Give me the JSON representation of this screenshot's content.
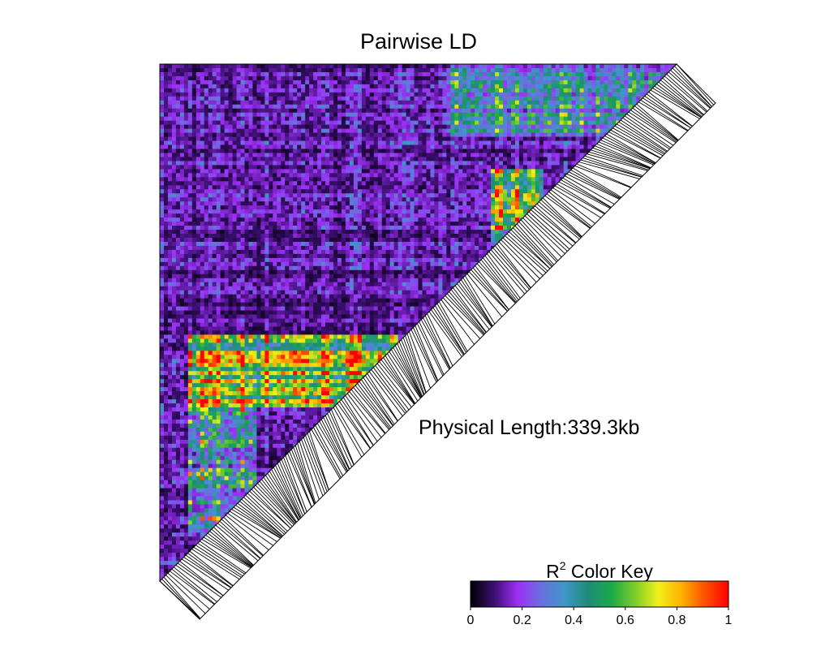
{
  "chart_data": {
    "type": "heatmap",
    "title": "Pairwise LD",
    "annotation": "Physical Length:339.3kb",
    "color_key": {
      "title_prefix": "R",
      "title_superscript": "2",
      "title_suffix": " Color Key",
      "ticks": [
        "0",
        "0.2",
        "0.4",
        "0.6",
        "0.8",
        "1"
      ],
      "range": [
        0,
        1
      ],
      "colors": [
        "#000004",
        "#3b0f70",
        "#9d2ef5",
        "#6b6fe0",
        "#3f96c8",
        "#1f8a7a",
        "#1aa84a",
        "#7ccc2a",
        "#f0f01a",
        "#ffb000",
        "#ff5000",
        "#ff0000"
      ]
    },
    "matrix_description_blocks": [
      {
        "region": "upper-left",
        "r2_range": [
          0.0,
          0.3
        ]
      },
      {
        "region": "upper-right block",
        "r2_range": [
          0.5,
          1.0
        ]
      },
      {
        "region": "lower-left block",
        "r2_range": [
          0.6,
          1.0
        ]
      },
      {
        "region": "bottom-left strip",
        "r2_range": [
          0.2,
          0.8
        ]
      }
    ]
  }
}
